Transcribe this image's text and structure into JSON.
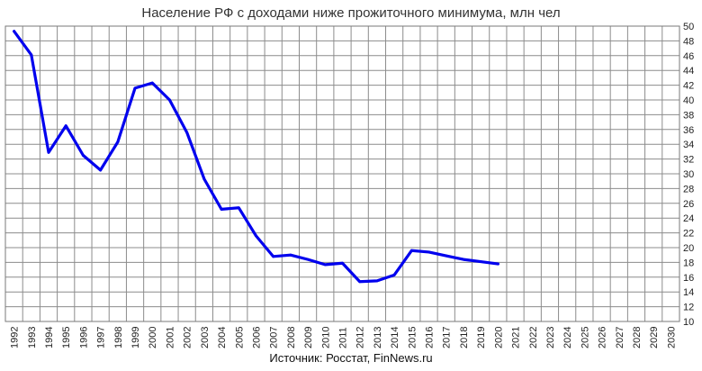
{
  "chart_data": {
    "type": "line",
    "title": "Население РФ с доходами ниже прожиточного минимума, млн чел",
    "source": "Источник: Росстат, FinNews.ru",
    "xlabel": "",
    "ylabel": "",
    "x_categories": [
      "1992",
      "1993",
      "1994",
      "1995",
      "1996",
      "1997",
      "1998",
      "1999",
      "2000",
      "2001",
      "2002",
      "2003",
      "2004",
      "2005",
      "2006",
      "2007",
      "2008",
      "2009",
      "2010",
      "2011",
      "2012",
      "2013",
      "2014",
      "2015",
      "2016",
      "2017",
      "2018",
      "2019",
      "2020",
      "2021",
      "2022",
      "2023",
      "2024",
      "2025",
      "2026",
      "2027",
      "2028",
      "2029",
      "2030"
    ],
    "y_ticks": [
      10,
      12,
      14,
      16,
      18,
      20,
      22,
      24,
      26,
      28,
      30,
      32,
      34,
      36,
      38,
      40,
      42,
      44,
      46,
      48,
      50
    ],
    "ylim": [
      10,
      50
    ],
    "y_axis_side": "right",
    "grid": true,
    "series": [
      {
        "color": "#0000ee",
        "x": [
          "1992",
          "1993",
          "1994",
          "1995",
          "1996",
          "1997",
          "1998",
          "1999",
          "2000",
          "2001",
          "2002",
          "2003",
          "2004",
          "2005",
          "2006",
          "2007",
          "2008",
          "2009",
          "2010",
          "2011",
          "2012",
          "2013",
          "2014",
          "2015",
          "2016",
          "2017",
          "2018",
          "2019",
          "2020"
        ],
        "values": [
          49.3,
          46.1,
          32.9,
          36.5,
          32.5,
          30.5,
          34.3,
          41.6,
          42.3,
          40.0,
          35.6,
          29.3,
          25.2,
          25.4,
          21.6,
          18.8,
          19.0,
          18.4,
          17.7,
          17.9,
          15.4,
          15.5,
          16.3,
          19.6,
          19.4,
          18.9,
          18.4,
          18.1,
          17.8
        ]
      }
    ]
  }
}
